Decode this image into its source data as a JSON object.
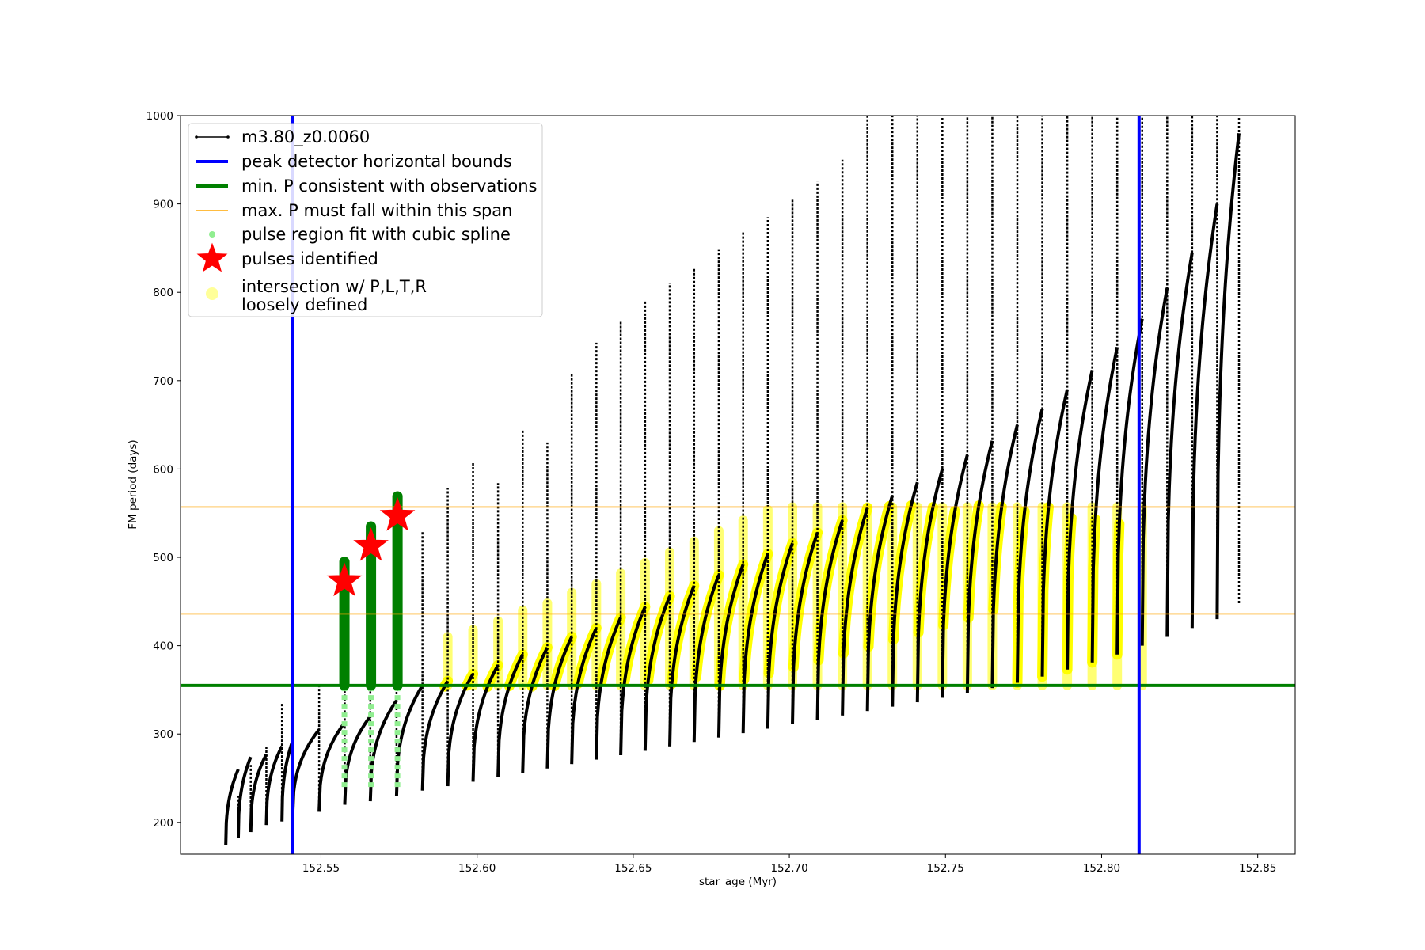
{
  "chart_data": {
    "type": "line",
    "title": "",
    "xlabel": "star_age (Myr)",
    "ylabel": "FM period (days)",
    "xlim": [
      152.505,
      152.862
    ],
    "ylim": [
      164,
      1000
    ],
    "xticks": [
      "152.55",
      "152.60",
      "152.65",
      "152.70",
      "152.75",
      "152.80",
      "152.85"
    ],
    "yticks": [
      "200",
      "300",
      "400",
      "500",
      "600",
      "700",
      "800",
      "900",
      "1000"
    ],
    "grid": false,
    "legend_position": "top-left",
    "colors": {
      "track": "#000000",
      "bounds": "#0000ff",
      "min_p": "#008000",
      "max_p_span": "#ffa500",
      "spline": "#90ee90",
      "pulses": "#ff0000",
      "intersection": "#ffff00"
    },
    "legend": [
      {
        "label": "m3.80_z0.0060",
        "kind": "line-marker",
        "color": "#000000"
      },
      {
        "label": "peak detector horizontal bounds",
        "kind": "line",
        "color": "#0000ff"
      },
      {
        "label": "min. P consistent with observations",
        "kind": "line",
        "color": "#008000"
      },
      {
        "label": "max. P must fall within this span",
        "kind": "thin-line",
        "color": "#ffa500"
      },
      {
        "label": "pulse region fit with cubic spline",
        "kind": "dot",
        "color": "#90ee90"
      },
      {
        "label": "pulses identified",
        "kind": "star",
        "color": "#ff0000"
      },
      {
        "label": "intersection w/ P,L,T,R",
        "label2": "loosely defined",
        "kind": "circle",
        "color": "#ffff99"
      }
    ],
    "vertical_bounds": [
      152.541,
      152.812
    ],
    "min_period": 355,
    "max_period_span": [
      436,
      557
    ],
    "pulses_identified": [
      {
        "x": 152.5575,
        "y": 473
      },
      {
        "x": 152.566,
        "y": 513
      },
      {
        "x": 152.5745,
        "y": 547
      }
    ],
    "track_cycles": [
      {
        "x0": 152.5195,
        "x1": 152.5235,
        "trough": 174,
        "peak": 260,
        "spike": 230
      },
      {
        "x0": 152.5235,
        "x1": 152.5275,
        "trough": 182,
        "peak": 274,
        "spike": 265
      },
      {
        "x0": 152.5275,
        "x1": 152.5325,
        "trough": 189,
        "peak": 277,
        "spike": 287
      },
      {
        "x0": 152.5325,
        "x1": 152.5375,
        "trough": 197,
        "peak": 286,
        "spike": 335
      },
      {
        "x0": 152.5375,
        "x1": 152.5409,
        "trough": 201,
        "peak": 292,
        "spike": 320
      },
      {
        "x0": 152.5409,
        "x1": 152.5494,
        "trough": 205,
        "peak": 305,
        "spike": 355
      },
      {
        "x0": 152.5494,
        "x1": 152.5576,
        "trough": 212,
        "peak": 313,
        "spike": 400
      },
      {
        "x0": 152.5576,
        "x1": 152.5658,
        "trough": 220,
        "peak": 320,
        "spike": 525
      },
      {
        "x0": 152.5658,
        "x1": 152.5742,
        "trough": 224,
        "peak": 338,
        "spike": 505
      },
      {
        "x0": 152.5742,
        "x1": 152.5825,
        "trough": 230,
        "peak": 355,
        "spike": 530
      },
      {
        "x0": 152.5825,
        "x1": 152.5906,
        "trough": 236,
        "peak": 360,
        "spike": 578
      },
      {
        "x0": 152.5906,
        "x1": 152.5987,
        "trough": 241,
        "peak": 368,
        "spike": 608
      },
      {
        "x0": 152.5987,
        "x1": 152.6067,
        "trough": 246,
        "peak": 378,
        "spike": 584
      },
      {
        "x0": 152.6067,
        "x1": 152.6146,
        "trough": 251,
        "peak": 390,
        "spike": 645
      },
      {
        "x0": 152.6146,
        "x1": 152.6225,
        "trough": 256,
        "peak": 398,
        "spike": 630
      },
      {
        "x0": 152.6225,
        "x1": 152.6303,
        "trough": 261,
        "peak": 410,
        "spike": 707
      },
      {
        "x0": 152.6303,
        "x1": 152.6382,
        "trough": 266,
        "peak": 420,
        "spike": 743
      },
      {
        "x0": 152.6382,
        "x1": 152.646,
        "trough": 271,
        "peak": 432,
        "spike": 768
      },
      {
        "x0": 152.646,
        "x1": 152.6538,
        "trough": 276,
        "peak": 444,
        "spike": 790
      },
      {
        "x0": 152.6538,
        "x1": 152.6617,
        "trough": 281,
        "peak": 456,
        "spike": 810
      },
      {
        "x0": 152.6617,
        "x1": 152.6695,
        "trough": 286,
        "peak": 468,
        "spike": 828
      },
      {
        "x0": 152.6695,
        "x1": 152.6774,
        "trough": 291,
        "peak": 480,
        "spike": 848
      },
      {
        "x0": 152.6774,
        "x1": 152.6852,
        "trough": 296,
        "peak": 492,
        "spike": 868
      },
      {
        "x0": 152.6852,
        "x1": 152.6931,
        "trough": 301,
        "peak": 504,
        "spike": 885
      },
      {
        "x0": 152.6931,
        "x1": 152.701,
        "trough": 306,
        "peak": 516,
        "spike": 905
      },
      {
        "x0": 152.701,
        "x1": 152.709,
        "trough": 311,
        "peak": 528,
        "spike": 925
      },
      {
        "x0": 152.709,
        "x1": 152.717,
        "trough": 316,
        "peak": 542,
        "spike": 950
      },
      {
        "x0": 152.717,
        "x1": 152.725,
        "trough": 321,
        "peak": 556,
        "spike": 1000
      },
      {
        "x0": 152.725,
        "x1": 152.733,
        "trough": 326,
        "peak": 570,
        "spike": 1000
      },
      {
        "x0": 152.733,
        "x1": 152.741,
        "trough": 331,
        "peak": 585,
        "spike": 1000
      },
      {
        "x0": 152.741,
        "x1": 152.749,
        "trough": 336,
        "peak": 600,
        "spike": 1000
      },
      {
        "x0": 152.749,
        "x1": 152.757,
        "trough": 341,
        "peak": 616,
        "spike": 1000
      },
      {
        "x0": 152.757,
        "x1": 152.765,
        "trough": 346,
        "peak": 632,
        "spike": 1000
      },
      {
        "x0": 152.765,
        "x1": 152.773,
        "trough": 352,
        "peak": 650,
        "spike": 1000
      },
      {
        "x0": 152.773,
        "x1": 152.781,
        "trough": 358,
        "peak": 668,
        "spike": 1000
      },
      {
        "x0": 152.781,
        "x1": 152.789,
        "trough": 365,
        "peak": 690,
        "spike": 1000
      },
      {
        "x0": 152.789,
        "x1": 152.797,
        "trough": 373,
        "peak": 712,
        "spike": 1000
      },
      {
        "x0": 152.797,
        "x1": 152.805,
        "trough": 381,
        "peak": 738,
        "spike": 1000
      },
      {
        "x0": 152.805,
        "x1": 152.813,
        "trough": 390,
        "peak": 770,
        "spike": 1000
      },
      {
        "x0": 152.813,
        "x1": 152.821,
        "trough": 400,
        "peak": 805,
        "spike": 1000
      },
      {
        "x0": 152.821,
        "x1": 152.829,
        "trough": 410,
        "peak": 845,
        "spike": 1000
      },
      {
        "x0": 152.829,
        "x1": 152.837,
        "trough": 420,
        "peak": 900,
        "spike": 1000
      },
      {
        "x0": 152.837,
        "x1": 152.844,
        "trough": 430,
        "peak": 980,
        "spike": 1000
      }
    ]
  }
}
